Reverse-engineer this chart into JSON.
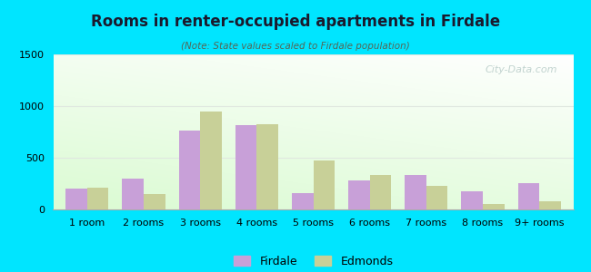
{
  "title": "Rooms in renter-occupied apartments in Firdale",
  "subtitle": "(Note: State values scaled to Firdale population)",
  "categories": [
    "1 room",
    "2 rooms",
    "3 rooms",
    "4 rooms",
    "5 rooms",
    "6 rooms",
    "7 rooms",
    "8 rooms",
    "9+ rooms"
  ],
  "firdale_values": [
    205,
    295,
    760,
    820,
    155,
    285,
    335,
    175,
    255
  ],
  "edmonds_values": [
    210,
    145,
    945,
    825,
    475,
    330,
    230,
    55,
    80
  ],
  "firdale_color": "#c8a0d8",
  "edmonds_color": "#c8d098",
  "background_outer": "#00e5ff",
  "ylim": [
    0,
    1500
  ],
  "yticks": [
    0,
    500,
    1000,
    1500
  ],
  "bar_width": 0.38,
  "legend_labels": [
    "Firdale",
    "Edmonds"
  ],
  "grid_color": "#e0e8e0",
  "watermark_color": "#b8ccc8",
  "title_color": "#1a1a2e",
  "subtitle_color": "#556655"
}
